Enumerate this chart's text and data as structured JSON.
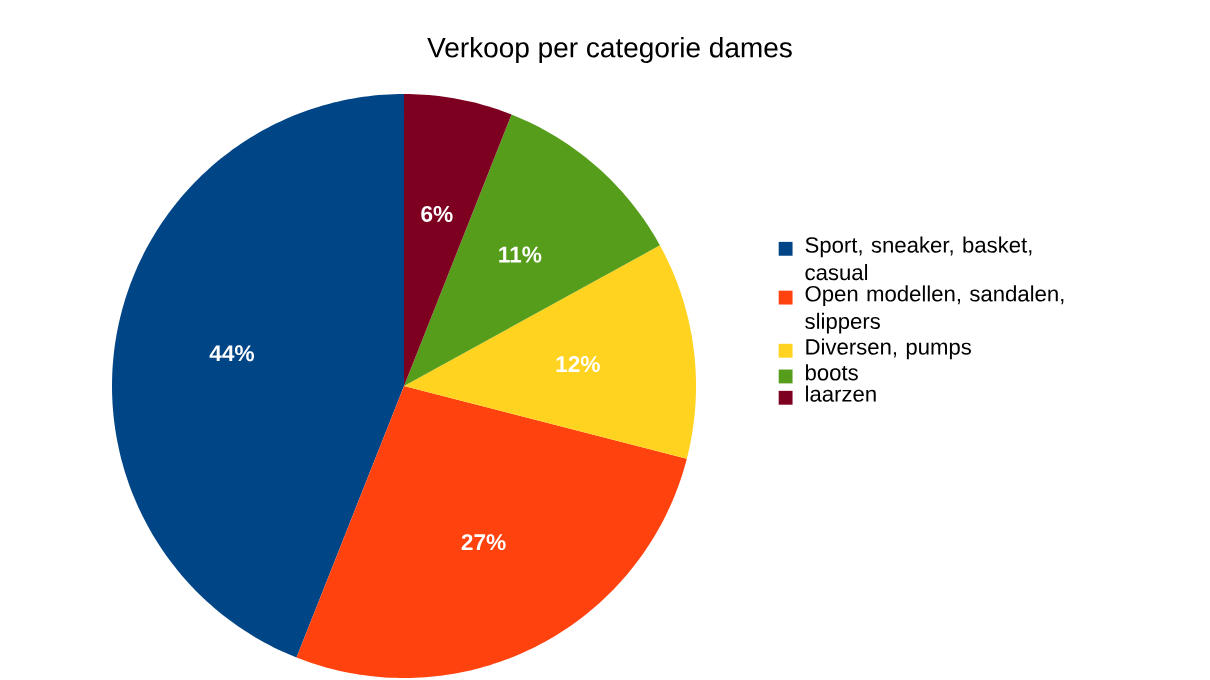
{
  "chart_data": {
    "type": "pie",
    "title": "Verkoop per categorie dames",
    "categories": [
      "Sport, sneaker, basket, casual",
      "Open modellen, sandalen, slippers",
      "Diversen, pumps",
      "boots",
      "laarzen"
    ],
    "values": [
      44,
      27,
      12,
      11,
      6
    ],
    "value_labels": [
      "44%",
      "27%",
      "12%",
      "11%",
      "6%"
    ],
    "colors": [
      "#004586",
      "#ff420e",
      "#ffd320",
      "#579d1c",
      "#7e0021"
    ],
    "legend": "right"
  }
}
